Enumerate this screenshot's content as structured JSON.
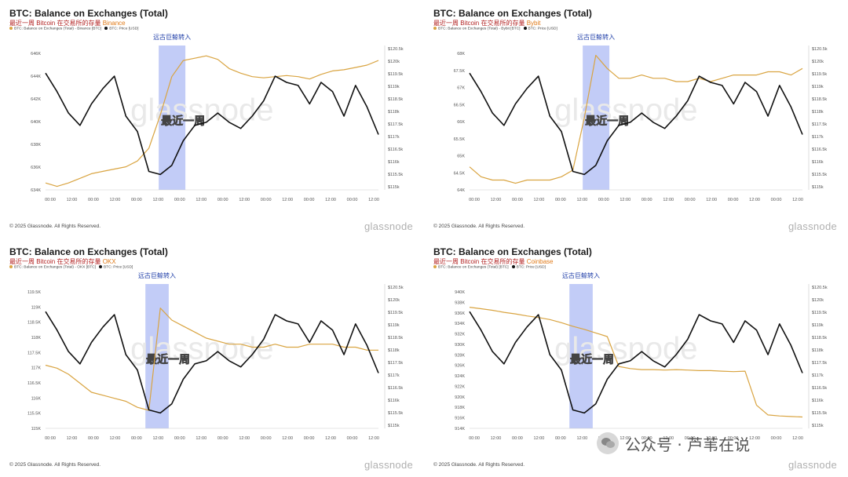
{
  "common": {
    "title": "BTC: Balance on Exchanges (Total)",
    "subtitle_prefix": "最近一周 Bitcoin 在交易所的存量",
    "legend_price": "BTC: Price [USD]",
    "highlight_label": "远古巨鲸转入",
    "watermark_week": "最近一周",
    "watermark_brand": "glassnode",
    "footer": "© 2025 Glassnode. All Rights Reserved.",
    "brand": "glassnode",
    "x_ticks": [
      "00:00",
      "12:00",
      "00:00",
      "12:00",
      "00:00",
      "12:00",
      "00:00",
      "12:00",
      "00:00",
      "12:00",
      "00:00",
      "12:00",
      "00:00",
      "12:00",
      "00:00",
      "12:00",
      "00:00",
      "12:00"
    ],
    "price_ticks": [
      "$120.5k",
      "$120k",
      "$119.5k",
      "$119k",
      "$118.5k",
      "$118k",
      "$117.5k",
      "$117k",
      "$116.5k",
      "$116k",
      "$115.5k",
      "$115k"
    ],
    "colors": {
      "balance": "#d9a441",
      "price": "#111111",
      "highlight": "#8fa3f0",
      "subtitle": "#b22222",
      "exchange": "#e07b1a"
    }
  },
  "wechat": {
    "label": "公众号 · 芦苇在说"
  },
  "panels": [
    {
      "exchange": "Binance",
      "legend_balance": "BTC: Balance on Exchanges (Total) - Binance [BTC]",
      "balance_ticks": [
        "646K",
        "644K",
        "642K",
        "640K",
        "638K",
        "636K",
        "634K"
      ]
    },
    {
      "exchange": "Bybit",
      "legend_balance": "BTC: Balance on Exchanges (Total) - Bybit [BTC]",
      "balance_ticks": [
        "68K",
        "67.5K",
        "67K",
        "66.5K",
        "66K",
        "65.5K",
        "65K",
        "64.5K",
        "64K"
      ]
    },
    {
      "exchange": "OKX",
      "legend_balance": "BTC: Balance on Exchanges (Total) - OKX [BTC]",
      "balance_ticks": [
        "119.5K",
        "119K",
        "118.5K",
        "118K",
        "117.5K",
        "117K",
        "116.5K",
        "116K",
        "115.5K",
        "115K"
      ]
    },
    {
      "exchange": "Coinbase",
      "legend_balance": "BTC: Balance on Exchanges (Total) [BTC]",
      "balance_ticks": [
        "940K",
        "938K",
        "936K",
        "934K",
        "932K",
        "930K",
        "928K",
        "926K",
        "924K",
        "922K",
        "920K",
        "918K",
        "916K",
        "914K"
      ]
    }
  ],
  "chart_data": [
    {
      "type": "line",
      "title": "BTC: Balance on Exchanges (Total)",
      "subtitle": "最近一周 Bitcoin 在交易所的存量 Binance",
      "ylabel": "",
      "ylim_left": [
        634,
        646.5
      ],
      "ylim_right": [
        115.8,
        120.5
      ],
      "series": [
        {
          "name": "BTC: Balance on Exchanges (Total) - Binance [BTC]",
          "axis": "left",
          "values": [
            634.6,
            634.3,
            634.6,
            635.0,
            635.4,
            635.6,
            635.8,
            636.0,
            636.5,
            637.6,
            640.5,
            643.8,
            645.2,
            645.4,
            645.6,
            645.3,
            644.5,
            644.1,
            643.8,
            643.7,
            643.8,
            643.9,
            643.8,
            643.6,
            644.0,
            644.3,
            644.4,
            644.6,
            644.8,
            645.2
          ]
        },
        {
          "name": "BTC: Price [USD]",
          "axis": "right",
          "values": [
            119.6,
            119.0,
            118.3,
            117.9,
            118.6,
            119.1,
            119.5,
            118.2,
            117.7,
            116.4,
            116.3,
            116.6,
            117.4,
            117.9,
            118.0,
            118.3,
            118.0,
            117.8,
            118.2,
            118.7,
            119.5,
            119.3,
            119.2,
            118.6,
            119.3,
            119.0,
            118.2,
            119.2,
            118.5,
            117.6
          ]
        }
      ],
      "highlight_range": [
        0.34,
        0.42
      ]
    },
    {
      "type": "line",
      "title": "BTC: Balance on Exchanges (Total)",
      "subtitle": "最近一周 Bitcoin 在交易所的存量 Bybit",
      "ylabel": "",
      "ylim_left": [
        63.8,
        68.2
      ],
      "ylim_right": [
        115.8,
        120.5
      ],
      "series": [
        {
          "name": "BTC: Balance on Exchanges (Total) - Bybit [BTC]",
          "axis": "left",
          "values": [
            64.5,
            64.2,
            64.1,
            64.1,
            64.0,
            64.1,
            64.1,
            64.1,
            64.2,
            64.4,
            66.0,
            67.9,
            67.5,
            67.2,
            67.2,
            67.3,
            67.2,
            67.2,
            67.1,
            67.1,
            67.2,
            67.1,
            67.2,
            67.3,
            67.3,
            67.3,
            67.4,
            67.4,
            67.3,
            67.5
          ]
        },
        {
          "name": "BTC: Price [USD]",
          "axis": "right",
          "values": [
            119.6,
            119.0,
            118.3,
            117.9,
            118.6,
            119.1,
            119.5,
            118.2,
            117.7,
            116.4,
            116.3,
            116.6,
            117.4,
            117.9,
            118.0,
            118.3,
            118.0,
            117.8,
            118.2,
            118.7,
            119.5,
            119.3,
            119.2,
            118.6,
            119.3,
            119.0,
            118.2,
            119.2,
            118.5,
            117.6
          ]
        }
      ],
      "highlight_range": [
        0.34,
        0.42
      ]
    },
    {
      "type": "line",
      "title": "BTC: Balance on Exchanges (Total)",
      "subtitle": "最近一周 Bitcoin 在交易所的存量 OKX",
      "ylabel": "",
      "ylim_left": [
        115.0,
        119.8
      ],
      "ylim_right": [
        115.8,
        120.5
      ],
      "series": [
        {
          "name": "BTC: Balance on Exchanges (Total) - OKX [BTC]",
          "axis": "left",
          "values": [
            117.1,
            117.0,
            116.8,
            116.5,
            116.2,
            116.1,
            116.0,
            115.9,
            115.7,
            115.6,
            119.0,
            118.6,
            118.4,
            118.2,
            118.0,
            117.9,
            117.8,
            117.8,
            117.7,
            117.7,
            117.8,
            117.7,
            117.7,
            117.8,
            117.8,
            117.8,
            117.7,
            117.7,
            117.6,
            117.6
          ]
        },
        {
          "name": "BTC: Price [USD]",
          "axis": "right",
          "values": [
            119.6,
            119.0,
            118.3,
            117.9,
            118.6,
            119.1,
            119.5,
            118.2,
            117.7,
            116.4,
            116.3,
            116.6,
            117.4,
            117.9,
            118.0,
            118.3,
            118.0,
            117.8,
            118.2,
            118.7,
            119.5,
            119.3,
            119.2,
            118.6,
            119.3,
            119.0,
            118.2,
            119.2,
            118.5,
            117.6
          ]
        }
      ],
      "highlight_range": [
        0.3,
        0.37
      ]
    },
    {
      "type": "line",
      "title": "BTC: Balance on Exchanges (Total)",
      "subtitle": "最近一周 Bitcoin 在交易所的存量 Coinbase",
      "ylabel": "",
      "ylim_left": [
        914,
        942
      ],
      "ylim_right": [
        115.8,
        120.5
      ],
      "series": [
        {
          "name": "BTC: Balance on Exchanges (Total) [BTC]",
          "axis": "left",
          "values": [
            937.5,
            937.2,
            936.9,
            936.5,
            936.2,
            935.8,
            935.5,
            935.1,
            934.5,
            933.8,
            933.2,
            932.5,
            931.8,
            926.0,
            925.6,
            925.4,
            925.4,
            925.3,
            925.4,
            925.3,
            925.2,
            925.2,
            925.1,
            925.0,
            925.1,
            918.5,
            916.6,
            916.4,
            916.3,
            916.2
          ]
        },
        {
          "name": "BTC: Price [USD]",
          "axis": "right",
          "values": [
            119.6,
            119.0,
            118.3,
            117.9,
            118.6,
            119.1,
            119.5,
            118.2,
            117.7,
            116.4,
            116.3,
            116.6,
            117.4,
            117.9,
            118.0,
            118.3,
            118.0,
            117.8,
            118.2,
            118.7,
            119.5,
            119.3,
            119.2,
            118.6,
            119.3,
            119.0,
            118.2,
            119.2,
            118.5,
            117.6
          ]
        }
      ],
      "highlight_range": [
        0.3,
        0.37
      ]
    }
  ]
}
